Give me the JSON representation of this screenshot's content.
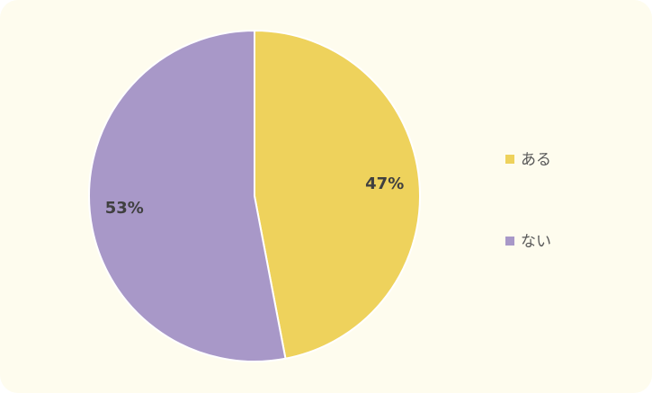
{
  "chart_data": {
    "type": "pie",
    "categories": [
      "ある",
      "ない"
    ],
    "values": [
      47,
      53
    ],
    "labels": [
      "47%",
      "53%"
    ],
    "colors": [
      "#eed25c",
      "#a898c8"
    ],
    "title": "",
    "legend_position": "right"
  }
}
